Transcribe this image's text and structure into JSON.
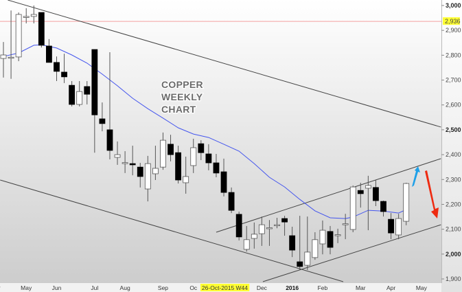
{
  "chart_data": {
    "type": "candlestick",
    "title_lines": [
      "COPPER",
      "WEEKLY",
      "CHART"
    ],
    "xlabel": "",
    "ylabel": "",
    "ylim": [
      1900,
      3000
    ],
    "yticks": [
      1900,
      2000,
      2100,
      2200,
      2300,
      2400,
      2500,
      2600,
      2700,
      2800,
      2900,
      3000
    ],
    "ytick_labels": [
      "1,900",
      "2,000",
      "2,100",
      "2,200",
      "2,300",
      "2,400",
      "2,500",
      "2,600",
      "2,700",
      "2,800",
      "2,900",
      "3,000"
    ],
    "ytick_bold": [
      2000,
      2500,
      3000
    ],
    "xtick_labels": [
      {
        "label": "Apr",
        "date": "2015-04-06"
      },
      {
        "label": "May",
        "date": "2015-05-04"
      },
      {
        "label": "Jun",
        "date": "2015-06-01"
      },
      {
        "label": "Jul",
        "date": "2015-07-06"
      },
      {
        "label": "Aug",
        "date": "2015-08-03"
      },
      {
        "label": "Sep",
        "date": "2015-09-07"
      },
      {
        "label": "Oc",
        "date": "2015-10-05"
      },
      {
        "label": "Dec",
        "date": "2015-12-07"
      },
      {
        "label": "2016",
        "date": "2016-01-04",
        "bold": true
      },
      {
        "label": "Feb",
        "date": "2016-02-01"
      },
      {
        "label": "Mar",
        "date": "2016-03-07"
      },
      {
        "label": "Apr",
        "date": "2016-04-04"
      },
      {
        "label": "May",
        "date": "2016-05-02"
      }
    ],
    "cursor_label": {
      "text": "26-Oct-2015 W44",
      "date": "2015-10-26",
      "color": "#ffff33"
    },
    "price_marker": {
      "value": 2936,
      "label": "2,936",
      "line_color": "#f4a0a0",
      "label_color": "#ffff33"
    },
    "first_week": "2015-04-20",
    "candles": [
      [
        2787,
        2853,
        2710,
        2801
      ],
      [
        2790,
        2980,
        2705,
        2792
      ],
      [
        2793,
        2972,
        2776,
        2964
      ],
      [
        2955,
        2989,
        2928,
        2956
      ],
      [
        2956,
        3000,
        2928,
        2964
      ],
      [
        2972,
        2972,
        2831,
        2840
      ],
      [
        2837,
        2865,
        2771,
        2771
      ],
      [
        2771,
        2795,
        2696,
        2735
      ],
      [
        2732,
        2806,
        2688,
        2713
      ],
      [
        2679,
        2696,
        2594,
        2602
      ],
      [
        2602,
        2696,
        2594,
        2654
      ],
      [
        2674,
        2696,
        2602,
        2643
      ],
      [
        2823,
        2823,
        2408,
        2560
      ],
      [
        2544,
        2610,
        2494,
        2525
      ],
      [
        2500,
        2812,
        2381,
        2417
      ],
      [
        2389,
        2453,
        2359,
        2400
      ],
      [
        2367,
        2414,
        2326,
        2368
      ],
      [
        2364,
        2436,
        2317,
        2359
      ],
      [
        2350,
        2367,
        2268,
        2312
      ],
      [
        2262,
        2395,
        2212,
        2364
      ],
      [
        2323,
        2436,
        2298,
        2345
      ],
      [
        2350,
        2489,
        2339,
        2458
      ],
      [
        2442,
        2480,
        2373,
        2400
      ],
      [
        2408,
        2436,
        2284,
        2298
      ],
      [
        2287,
        2392,
        2243,
        2312
      ],
      [
        2356,
        2464,
        2326,
        2428
      ],
      [
        2444,
        2458,
        2378,
        2408
      ],
      [
        2403,
        2442,
        2337,
        2367
      ],
      [
        2367,
        2403,
        2309,
        2326
      ],
      [
        2331,
        2384,
        2232,
        2248
      ],
      [
        2248,
        2268,
        2165,
        2176
      ],
      [
        2160,
        2171,
        2055,
        2069
      ],
      [
        2019,
        2113,
        2010,
        2058
      ],
      [
        2063,
        2127,
        2022,
        2080
      ],
      [
        2082,
        2151,
        2033,
        2118
      ],
      [
        2104,
        2137,
        2033,
        2106
      ],
      [
        2118,
        2146,
        2104,
        2118
      ],
      [
        2143,
        2154,
        2074,
        2129
      ],
      [
        2074,
        2110,
        1988,
        2016
      ],
      [
        1969,
        2154,
        1936,
        1950
      ],
      [
        1955,
        2151,
        1936,
        2008
      ],
      [
        1986,
        2088,
        1977,
        2058
      ],
      [
        2041,
        2135,
        1999,
        2096
      ],
      [
        2091,
        2113,
        1999,
        2027
      ],
      [
        2077,
        2102,
        2044,
        2078
      ],
      [
        2121,
        2162,
        2060,
        2122
      ],
      [
        2099,
        2276,
        2088,
        2270
      ],
      [
        2256,
        2287,
        2187,
        2243
      ],
      [
        2265,
        2315,
        2096,
        2276
      ],
      [
        2268,
        2298,
        2193,
        2215
      ],
      [
        2212,
        2215,
        2151,
        2171
      ],
      [
        2140,
        2165,
        2060,
        2085
      ],
      [
        2077,
        2162,
        2060,
        2143
      ],
      [
        2132,
        2287,
        2116,
        2284
      ]
    ],
    "candle_fields": [
      "open",
      "high",
      "low",
      "close"
    ],
    "moving_average": {
      "color": "#4455ee",
      "points": [
        [
          "2015-04-20",
          2795
        ],
        [
          "2015-05-04",
          2809
        ],
        [
          "2015-05-18",
          2840
        ],
        [
          "2015-05-25",
          2842
        ],
        [
          "2015-06-08",
          2829
        ],
        [
          "2015-06-22",
          2801
        ],
        [
          "2015-07-06",
          2768
        ],
        [
          "2015-07-20",
          2724
        ],
        [
          "2015-08-03",
          2677
        ],
        [
          "2015-08-17",
          2627
        ],
        [
          "2015-08-31",
          2585
        ],
        [
          "2015-09-14",
          2547
        ],
        [
          "2015-09-28",
          2508
        ],
        [
          "2015-10-12",
          2483
        ],
        [
          "2015-10-26",
          2469
        ],
        [
          "2015-11-09",
          2442
        ],
        [
          "2015-11-23",
          2414
        ],
        [
          "2015-12-07",
          2364
        ],
        [
          "2015-12-21",
          2309
        ],
        [
          "2016-01-04",
          2270
        ],
        [
          "2016-01-18",
          2220
        ],
        [
          "2016-02-01",
          2174
        ],
        [
          "2016-02-15",
          2146
        ],
        [
          "2016-02-29",
          2143
        ],
        [
          "2016-03-07",
          2149
        ],
        [
          "2016-03-21",
          2176
        ],
        [
          "2016-04-04",
          2173
        ],
        [
          "2016-04-18",
          2165
        ],
        [
          "2016-04-25",
          2179
        ]
      ]
    },
    "trendlines": [
      {
        "from": [
          "2015-04-24",
          3022
        ],
        "to": [
          "2016-05-27",
          2511
        ],
        "color": "#444"
      },
      {
        "from": [
          "2015-04-17",
          2298
        ],
        "to": [
          "2016-02-27",
          1889
        ],
        "color": "#444"
      },
      {
        "from": [
          "2015-11-02",
          2088
        ],
        "to": [
          "2016-05-27",
          2384
        ],
        "color": "#444"
      },
      {
        "from": [
          "2015-12-15",
          1889
        ],
        "to": [
          "2016-05-27",
          2118
        ],
        "color": "#444"
      }
    ],
    "arrows": [
      {
        "direction": "up",
        "color": "#1ea0e8"
      },
      {
        "direction": "down",
        "color": "#ee2a10"
      }
    ],
    "grid": false
  }
}
